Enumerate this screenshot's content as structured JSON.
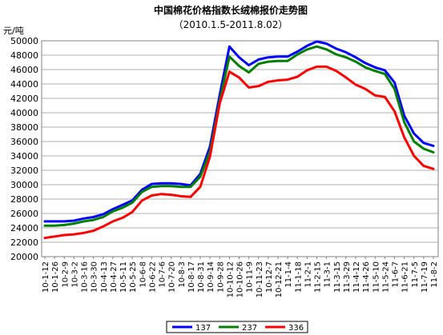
{
  "chart_data": {
    "type": "line",
    "title": "中国棉花价格指数长绒棉报价走势图",
    "subtitle": "（2010.1.5-2011.8.02）",
    "ylabel": "元/吨",
    "ylim": [
      20000,
      50000
    ],
    "yticks": [
      20000,
      22000,
      24000,
      26000,
      28000,
      30000,
      32000,
      34000,
      36000,
      38000,
      40000,
      42000,
      44000,
      46000,
      48000,
      50000
    ],
    "ytick_labels": [
      "20000",
      "22000",
      "24000",
      "26000",
      "28000",
      "30000",
      "32000",
      "34000",
      "36000",
      "38000",
      "40000",
      "42000",
      "44000",
      "46000",
      "48000",
      "50000"
    ],
    "grid": true,
    "legend_position": "bottom",
    "x": [
      "10-1-12",
      "10-1-26",
      "10-2-9",
      "10-3-2",
      "10-3-16",
      "10-3-30",
      "10-4-13",
      "10-4-27",
      "10-5-11",
      "10-5-25",
      "10-6-8",
      "10-6-22",
      "10-7-6",
      "10-7-20",
      "10-8-3",
      "10-8-17",
      "10-8-31",
      "10-9-14",
      "10-9-28",
      "10-10-12",
      "10-10-26",
      "10-11-9",
      "10-11-23",
      "10-12-7",
      "10-12-21",
      "11-1-4",
      "11-1-18",
      "11-2-1",
      "11-2-15",
      "11-3-1",
      "11-3-15",
      "11-3-29",
      "11-4-12",
      "11-4-26",
      "11-5-10",
      "11-5-24",
      "11-6-7",
      "11-6-21",
      "11-7-5",
      "11-7-19",
      "11-8-2"
    ],
    "x_labels": [
      "10-1-12",
      "10-1-26",
      "10-2-9",
      "10-3-2",
      "10-3-16",
      "10-3-30",
      "10-4-13",
      "10-4-27",
      "10-5-11",
      "10-5-25",
      "10-6-8",
      "10-6-22",
      "10-7-6",
      "10-7-20",
      "10-8-3",
      "10-8-17",
      "10-8-31",
      "10-9-14",
      "10-9-28",
      "10-10-12",
      "10-10-26",
      "10-11-9",
      "10-11-23",
      "10-12-7",
      "10-12-21",
      "11-1-4",
      "11-1-18",
      "11-2-1",
      "11-2-15",
      "11-3-1",
      "11-3-15",
      "11-3-29",
      "11-4-12",
      "11-4-26",
      "11-5-10",
      "11-5-24",
      "11-6-7",
      "11-6-21",
      "11-7-5",
      "11-7-19",
      "11-8-2"
    ],
    "x_label_indices": [
      0,
      1,
      2,
      3,
      4,
      5,
      6,
      7,
      8,
      9,
      10,
      11,
      12,
      13,
      14,
      15,
      16,
      17,
      18,
      19,
      20,
      21,
      22,
      23,
      24,
      25,
      26,
      27,
      28,
      29,
      30,
      31,
      32,
      33,
      34,
      35,
      36,
      37,
      38,
      39,
      40
    ],
    "series": [
      {
        "name": "137",
        "color": "#0000ff",
        "values": [
          24900,
          24900,
          24900,
          25000,
          25300,
          25500,
          25900,
          26600,
          27200,
          27800,
          29300,
          30100,
          30200,
          30200,
          30100,
          29900,
          31500,
          35300,
          42500,
          49200,
          47700,
          46600,
          47400,
          47700,
          47800,
          47800,
          48500,
          49300,
          49900,
          49600,
          48900,
          48400,
          47700,
          46900,
          46300,
          45900,
          44200,
          39600,
          37100,
          35800,
          35400
        ]
      },
      {
        "name": "237",
        "color": "#008000",
        "values": [
          24300,
          24300,
          24400,
          24600,
          24900,
          25100,
          25500,
          26300,
          26800,
          27500,
          29000,
          29700,
          29800,
          29800,
          29700,
          29700,
          31100,
          34600,
          41700,
          47800,
          46500,
          45600,
          46800,
          47100,
          47200,
          47200,
          48100,
          48800,
          49200,
          48800,
          48100,
          47700,
          47100,
          46300,
          45800,
          45400,
          43300,
          38700,
          36000,
          35000,
          34500
        ]
      },
      {
        "name": "336",
        "color": "#ff0000",
        "values": [
          22600,
          22800,
          23000,
          23100,
          23300,
          23600,
          24200,
          24900,
          25400,
          26200,
          27800,
          28500,
          28700,
          28600,
          28400,
          28300,
          29700,
          33900,
          41300,
          45700,
          44900,
          43500,
          43700,
          44300,
          44500,
          44600,
          45000,
          45900,
          46400,
          46400,
          45800,
          44900,
          43900,
          43300,
          42400,
          42200,
          40200,
          36600,
          34000,
          32600,
          32200
        ]
      }
    ]
  }
}
